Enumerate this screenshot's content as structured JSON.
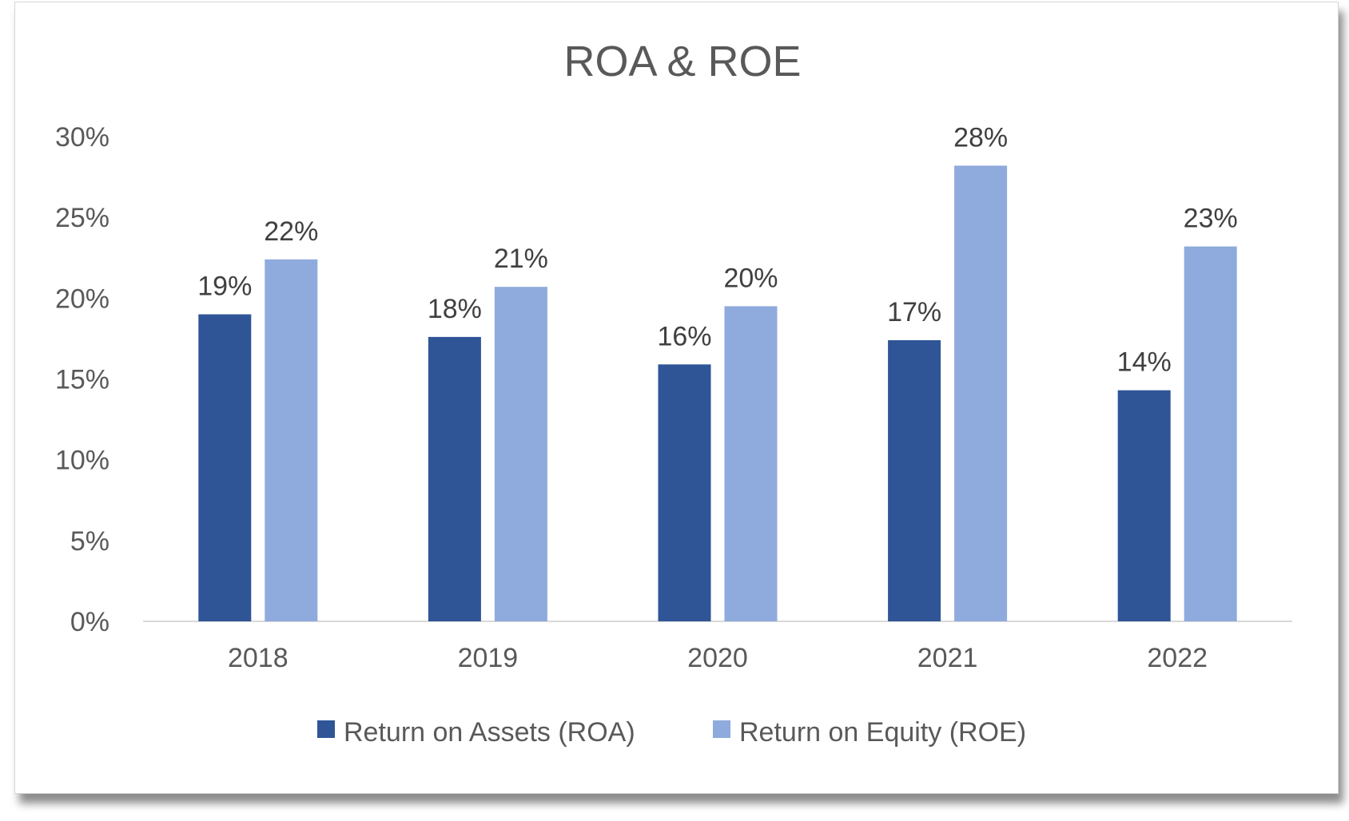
{
  "chart_data": {
    "type": "bar",
    "title": "ROA & ROE",
    "xlabel": "",
    "ylabel": "",
    "categories": [
      "2018",
      "2019",
      "2020",
      "2021",
      "2022"
    ],
    "series": [
      {
        "name": "Return on Assets (ROA)",
        "color": "#2F5597",
        "values": [
          0.19,
          0.176,
          0.159,
          0.174,
          0.143
        ],
        "labels": [
          "19%",
          "18%",
          "16%",
          "17%",
          "14%"
        ]
      },
      {
        "name": "Return on Equity (ROE)",
        "color": "#8FAADC",
        "values": [
          0.224,
          0.207,
          0.195,
          0.282,
          0.232
        ],
        "labels": [
          "22%",
          "21%",
          "20%",
          "28%",
          "23%"
        ]
      }
    ],
    "ylim": [
      0,
      0.3
    ],
    "yticks": [
      0,
      0.05,
      0.1,
      0.15,
      0.2,
      0.25,
      0.3
    ],
    "ytick_labels": [
      "0%",
      "5%",
      "10%",
      "15%",
      "20%",
      "25%",
      "30%"
    ],
    "grid": false,
    "legend_position": "bottom"
  }
}
